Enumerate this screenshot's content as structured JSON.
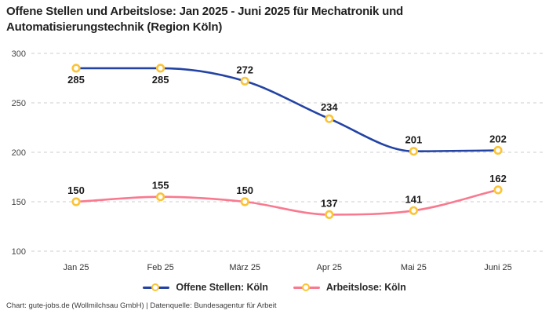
{
  "page": {
    "title": "Offene Stellen und Arbeitslose: Jan 2025 - Juni 2025 für Mechatronik und Automatisierungstechnik (Region Köln)",
    "footer": "Chart: gute-jobs.de (Wollmilchsau GmbH) | Datenquelle: Bundesagentur für Arbeit"
  },
  "chart_data": {
    "type": "line",
    "title": "Offene Stellen und Arbeitslose: Jan 2025 - Juni 2025 für Mechatronik und Automatisierungstechnik (Region Köln)",
    "categories": [
      "Jan 25",
      "Feb 25",
      "März 25",
      "Apr 25",
      "Mai 25",
      "Juni 25"
    ],
    "series": [
      {
        "name": "Offene Stellen: Köln",
        "color": "#2343A4",
        "values": [
          285,
          285,
          272,
          234,
          201,
          202
        ],
        "label_positions": [
          "below",
          "below",
          "above",
          "above",
          "above",
          "above"
        ]
      },
      {
        "name": "Arbeitslose: Köln",
        "color": "#F9798F",
        "values": [
          150,
          155,
          150,
          137,
          141,
          162
        ],
        "label_positions": [
          "above",
          "above",
          "above",
          "above",
          "above",
          "above"
        ]
      }
    ],
    "marker_color": "#FBC437",
    "marker_fill": "#FFFFFF",
    "grid_color": "#CCCCCC",
    "axis_label_color": "#444444",
    "value_label_color": "#1b1b1b",
    "ylim": [
      100,
      300
    ],
    "yticks": [
      100,
      150,
      200,
      250,
      300
    ],
    "grid": "horizontal dashed",
    "legend_position": "bottom",
    "line_style": "smooth"
  }
}
